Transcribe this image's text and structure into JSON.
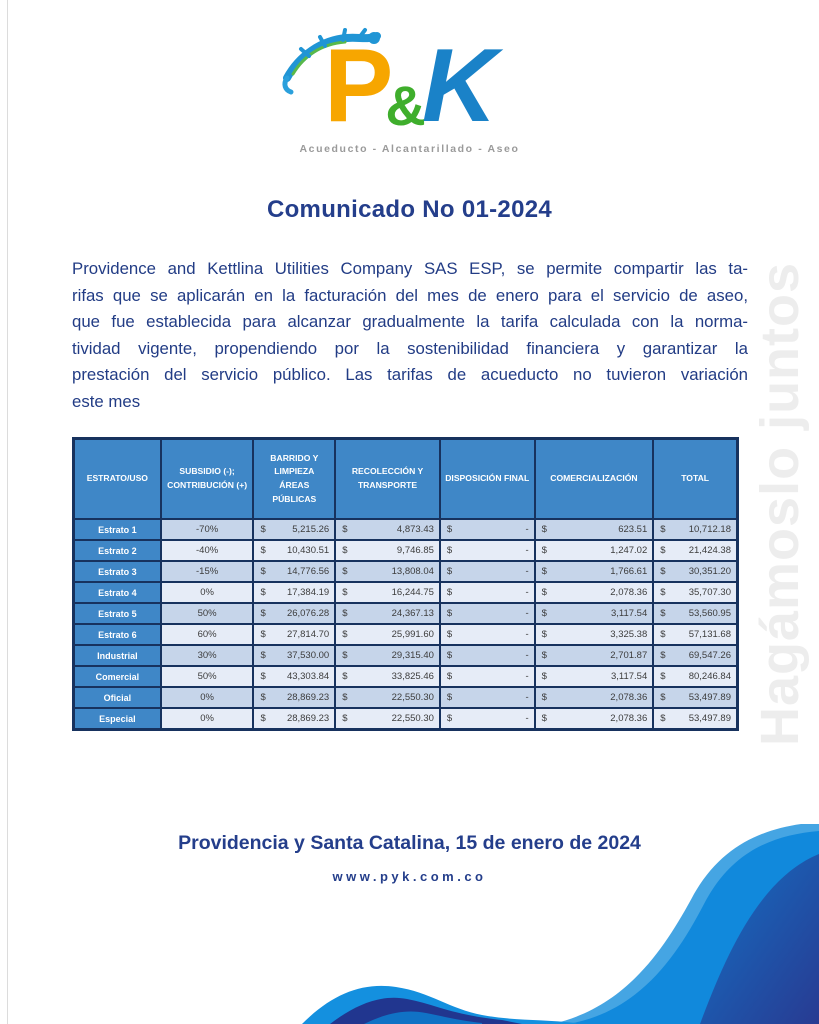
{
  "logo": {
    "p": "P",
    "amp": "&",
    "k": "K",
    "tagline": "Acueducto - Alcantarillado - Aseo"
  },
  "title": "Comunicado No 01-2024",
  "paragraph": {
    "lines": [
      "Providence and Kettlina Utilities Company SAS ESP, se permite compartir las ta-",
      "rifas que se aplicarán en la facturación del mes de enero para el servicio de aseo,",
      "que fue establecida para alcanzar gradualmente la tarifa calculada con la norma-",
      "tividad vigente, propendiendo por la sostenibilidad financiera y garantizar la",
      "prestación del servicio público. Las tarifas de acueducto no tuvieron variación",
      "este mes"
    ]
  },
  "watermark": "Hagámoslo juntos",
  "table": {
    "currency": "$",
    "headers": [
      "ESTRATO/USO",
      "SUBSIDIO (-); CONTRIBUCIÓN (+)",
      "BARRIDO Y LIMPIEZA ÁREAS PÚBLICAS",
      "RECOLECCIÓN Y TRANSPORTE",
      "DISPOSICIÓN FINAL",
      "COMERCIALIZACIÓN",
      "TOTAL"
    ],
    "rows": [
      {
        "label": "Estrato 1",
        "subsidio": "-70%",
        "barrido": "5,215.26",
        "recoleccion": "4,873.43",
        "disposicion": "-",
        "comercializacion": "623.51",
        "total": "10,712.18"
      },
      {
        "label": "Estrato 2",
        "subsidio": "-40%",
        "barrido": "10,430.51",
        "recoleccion": "9,746.85",
        "disposicion": "-",
        "comercializacion": "1,247.02",
        "total": "21,424.38"
      },
      {
        "label": "Estrato 3",
        "subsidio": "-15%",
        "barrido": "14,776.56",
        "recoleccion": "13,808.04",
        "disposicion": "-",
        "comercializacion": "1,766.61",
        "total": "30,351.20"
      },
      {
        "label": "Estrato 4",
        "subsidio": "0%",
        "barrido": "17,384.19",
        "recoleccion": "16,244.75",
        "disposicion": "-",
        "comercializacion": "2,078.36",
        "total": "35,707.30"
      },
      {
        "label": "Estrato 5",
        "subsidio": "50%",
        "barrido": "26,076.28",
        "recoleccion": "24,367.13",
        "disposicion": "-",
        "comercializacion": "3,117.54",
        "total": "53,560.95"
      },
      {
        "label": "Estrato 6",
        "subsidio": "60%",
        "barrido": "27,814.70",
        "recoleccion": "25,991.60",
        "disposicion": "-",
        "comercializacion": "3,325.38",
        "total": "57,131.68"
      },
      {
        "label": "Industrial",
        "subsidio": "30%",
        "barrido": "37,530.00",
        "recoleccion": "29,315.40",
        "disposicion": "-",
        "comercializacion": "2,701.87",
        "total": "69,547.26"
      },
      {
        "label": "Comercial",
        "subsidio": "50%",
        "barrido": "43,303.84",
        "recoleccion": "33,825.46",
        "disposicion": "-",
        "comercializacion": "3,117.54",
        "total": "80,246.84"
      },
      {
        "label": "Oficial",
        "subsidio": "0%",
        "barrido": "28,869.23",
        "recoleccion": "22,550.30",
        "disposicion": "-",
        "comercializacion": "2,078.36",
        "total": "53,497.89"
      },
      {
        "label": "Especial",
        "subsidio": "0%",
        "barrido": "28,869.23",
        "recoleccion": "22,550.30",
        "disposicion": "-",
        "comercializacion": "2,078.36",
        "total": "53,497.89"
      }
    ]
  },
  "footer": {
    "location_date": "Providencia y Santa Catalina, 15 de enero de 2024",
    "website": "www.pyk.com.co"
  },
  "colors": {
    "navy_text": "#243E8B",
    "table_header_blue": "#3F87C7",
    "row_dark": "#C6D5EA",
    "row_light": "#E6ECF7",
    "table_border": "#17325E",
    "wave_bright": "#1490DF",
    "wave_navy": "#21368F",
    "logo_orange": "#F7A600",
    "logo_green": "#3FAE2C",
    "logo_blue": "#1A82C8",
    "watermark_gray": "#EDEDED"
  }
}
